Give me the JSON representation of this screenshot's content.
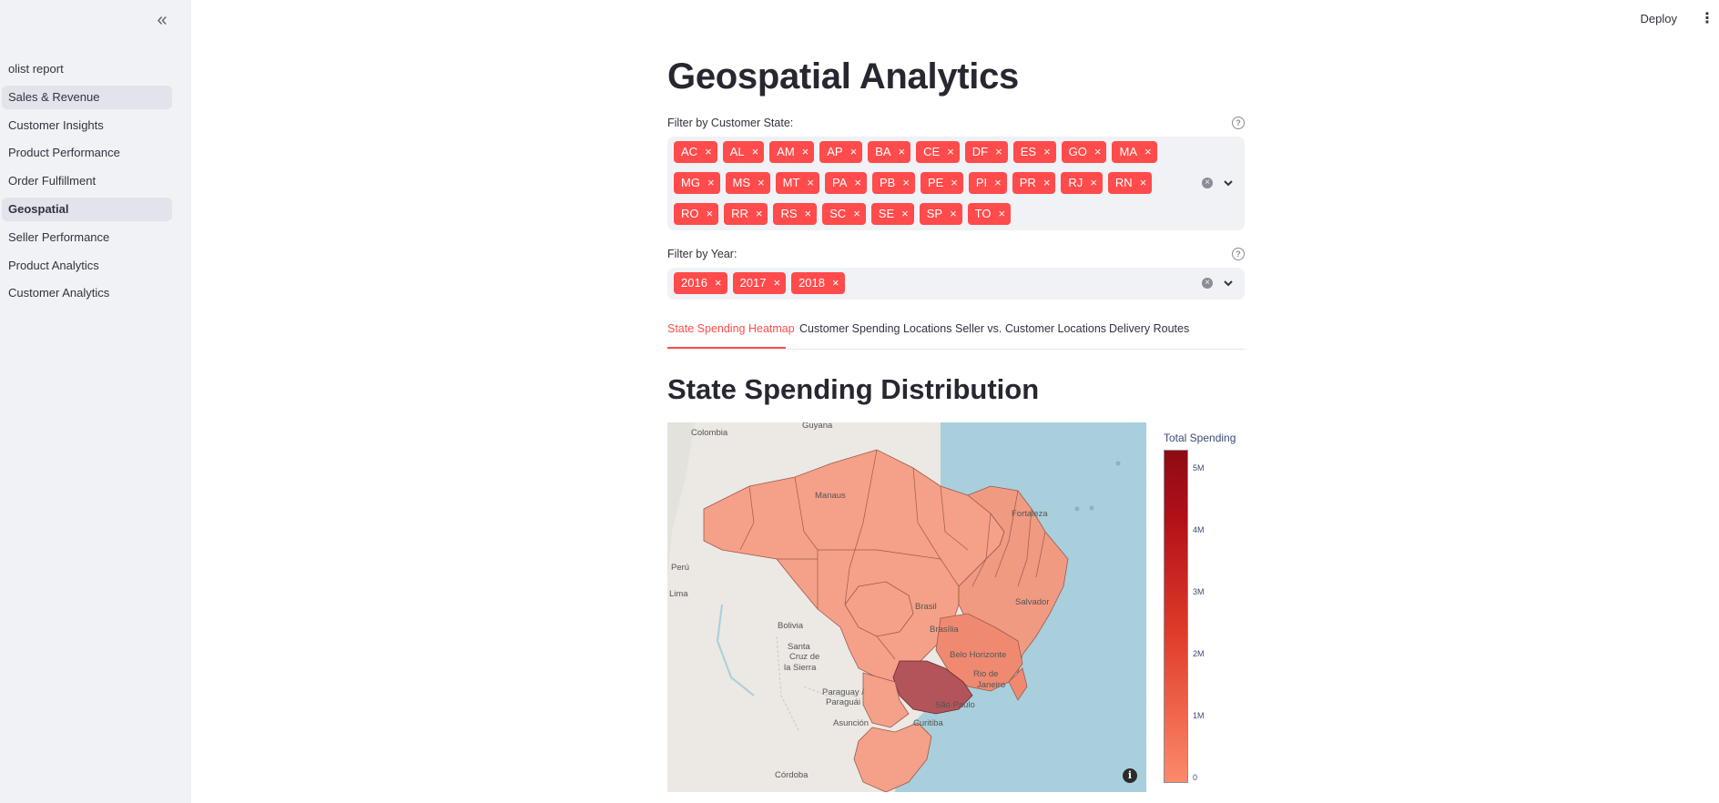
{
  "sidebar": {
    "items": [
      {
        "label": "olist report",
        "state": "normal"
      },
      {
        "label": "Sales & Revenue",
        "state": "highlight"
      },
      {
        "label": "Customer Insights",
        "state": "normal"
      },
      {
        "label": "Product Performance",
        "state": "normal"
      },
      {
        "label": "Order Fulfillment",
        "state": "normal"
      },
      {
        "label": "Geospatial",
        "state": "active"
      },
      {
        "label": "Seller Performance",
        "state": "normal"
      },
      {
        "label": "Product Analytics",
        "state": "normal"
      },
      {
        "label": "Customer Analytics",
        "state": "normal"
      }
    ]
  },
  "header": {
    "deploy_label": "Deploy"
  },
  "page": {
    "title": "Geospatial Analytics"
  },
  "filters": {
    "state": {
      "label": "Filter by Customer State:",
      "tags": [
        "AC",
        "AL",
        "AM",
        "AP",
        "BA",
        "CE",
        "DF",
        "ES",
        "GO",
        "MA",
        "MG",
        "MS",
        "MT",
        "PA",
        "PB",
        "PE",
        "PI",
        "PR",
        "RJ",
        "RN",
        "RO",
        "RR",
        "RS",
        "SC",
        "SE",
        "SP",
        "TO"
      ]
    },
    "year": {
      "label": "Filter by Year:",
      "tags": [
        "2016",
        "2017",
        "2018"
      ]
    }
  },
  "tabs": [
    {
      "label": "State Spending Heatmap",
      "active": true
    },
    {
      "label": "Customer Spending Locations",
      "active": false
    },
    {
      "label": "Seller vs. Customer Locations",
      "active": false
    },
    {
      "label": "Delivery Routes",
      "active": false
    }
  ],
  "section": {
    "title": "State Spending Distribution"
  },
  "map": {
    "place_labels": [
      "Colombia",
      "Guyana",
      "Manaus",
      "Fortaleza",
      "Perú",
      "Lima",
      "Brasil",
      "Brasília",
      "Salvador",
      "Bolivia",
      "Santa Cruz de la Sierra",
      "Belo Horizonte",
      "Rio de Janeiro",
      "Paraguay / Paraguái",
      "São Paulo",
      "Asunción",
      "Curitiba",
      "Córdoba"
    ],
    "colors": {
      "ocean": "#a8cfdb",
      "land": "#ece8e3",
      "low": "#f5a088",
      "mid": "#ef8a70",
      "high": "#b2545a"
    }
  },
  "colorbar": {
    "title": "Total Spending",
    "ticks": [
      "5M",
      "4M",
      "3M",
      "2M",
      "1M",
      "0"
    ],
    "tick_values": [
      5,
      4,
      3,
      2,
      1,
      0
    ],
    "max": 5.2,
    "colors": {
      "low": "#fc8a6a",
      "high": "#8e0b14"
    }
  }
}
